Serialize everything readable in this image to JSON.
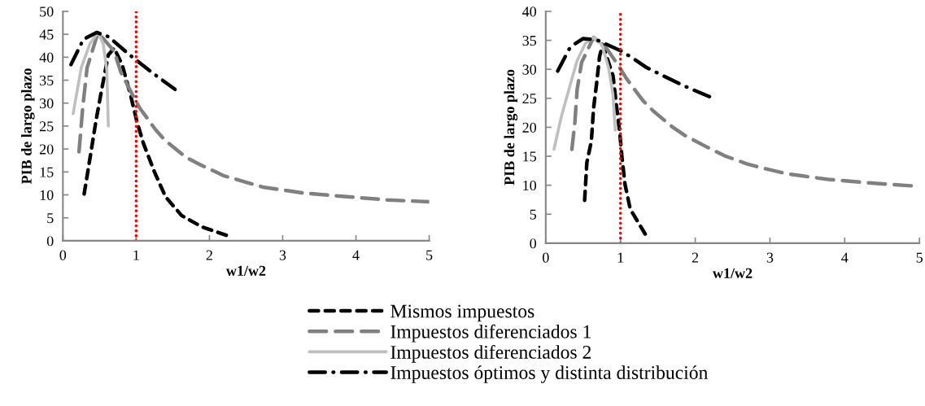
{
  "chart_data": [
    {
      "type": "line",
      "xlabel": "w1/w2",
      "ylabel": "PIB de largo plazo",
      "xlim": [
        0,
        5
      ],
      "xticks": [
        0,
        1,
        2,
        3,
        4,
        5
      ],
      "ylim": [
        0,
        50
      ],
      "yticks": [
        0,
        5,
        10,
        15,
        20,
        25,
        30,
        35,
        40,
        45,
        50
      ],
      "grid": false,
      "legend": "bottom",
      "ref_lines": [
        {
          "axis": "x",
          "value": 1,
          "color": "#ff0000",
          "line_style": "dotted"
        }
      ],
      "series": [
        {
          "name": "Mismos impuestos",
          "color": "#000000",
          "line_style": "dashed",
          "x": [
            0.29,
            0.37,
            0.45,
            0.53,
            0.62,
            0.7,
            0.81,
            0.92,
            1.01,
            1.1,
            1.25,
            1.4,
            1.62,
            1.9,
            2.23
          ],
          "values": [
            10.2,
            18,
            26,
            33,
            40.5,
            42,
            38.3,
            32,
            26,
            21.2,
            15,
            9.6,
            5.5,
            3,
            1.2
          ]
        },
        {
          "name": "Impuestos diferenciados 1",
          "color": "#808080",
          "line_style": "long dashed",
          "x": [
            0.22,
            0.27,
            0.33,
            0.48,
            0.7,
            0.79,
            0.96,
            1.05,
            1.27,
            1.4,
            1.68,
            1.86,
            2.19,
            2.73,
            3.28,
            3.88,
            4.43,
            5.0
          ],
          "values": [
            19.4,
            28.9,
            37.7,
            45.4,
            41.3,
            36.8,
            31.5,
            28.9,
            24.1,
            21.8,
            18.2,
            16.7,
            14.2,
            11.7,
            10.4,
            9.6,
            8.9,
            8.5
          ]
        },
        {
          "name": "Impuestos diferenciados 2",
          "color": "#bfbfbf",
          "line_style": "solid",
          "x": [
            0.14,
            0.25,
            0.37,
            0.48,
            0.55,
            0.6,
            0.62
          ],
          "values": [
            27.7,
            37.7,
            43,
            45.4,
            43,
            37.1,
            25
          ]
        },
        {
          "name": "Impuestos óptimos y distinta distribución",
          "color": "#000000",
          "line_style": "dash dot",
          "x": [
            0.11,
            0.28,
            0.46,
            0.62,
            0.92,
            1.08,
            1.23,
            1.53
          ],
          "values": [
            38.4,
            43.9,
            45.4,
            44.5,
            40.4,
            38.4,
            36.5,
            33
          ]
        }
      ]
    },
    {
      "type": "line",
      "xlabel": "w1/w2",
      "ylabel": "PIB de largo plazo",
      "xlim": [
        0,
        5
      ],
      "xticks": [
        0,
        1,
        2,
        3,
        4,
        5
      ],
      "ylim": [
        0,
        40
      ],
      "yticks": [
        0,
        5,
        10,
        15,
        20,
        25,
        30,
        35,
        40
      ],
      "grid": false,
      "legend": "bottom",
      "ref_lines": [
        {
          "axis": "x",
          "value": 1,
          "color": "#ff0000",
          "line_style": "dotted"
        }
      ],
      "series": [
        {
          "name": "Mismos impuestos",
          "color": "#000000",
          "line_style": "dashed",
          "x": [
            0.52,
            0.55,
            0.61,
            0.64,
            0.68,
            0.72,
            0.76,
            0.9,
            0.95,
            0.99,
            1.02,
            1.06,
            1.13,
            1.33
          ],
          "values": [
            7.4,
            13.9,
            17.6,
            23.3,
            27.5,
            32.2,
            34.3,
            28.9,
            23.3,
            19.1,
            14.8,
            10.2,
            5.9,
            1.6
          ]
        },
        {
          "name": "Impuestos diferenciados 1",
          "color": "#808080",
          "line_style": "long dashed",
          "x": [
            0.35,
            0.39,
            0.42,
            0.48,
            0.64,
            0.82,
            0.97,
            1.08,
            1.3,
            1.44,
            1.7,
            1.86,
            2.17,
            2.39,
            2.69,
            2.89,
            3.22,
            3.44,
            3.78,
            3.98,
            4.33,
            4.89
          ],
          "values": [
            16.2,
            20.9,
            26.5,
            31.2,
            35.5,
            33.5,
            30.7,
            28.4,
            24.6,
            22.8,
            20,
            18.6,
            16.5,
            15.1,
            13.7,
            13,
            12,
            11.6,
            11,
            10.8,
            10.4,
            9.9
          ]
        },
        {
          "name": "Impuestos diferenciados 2",
          "color": "#bfbfbf",
          "line_style": "solid",
          "x": [
            0.11,
            0.21,
            0.32,
            0.42,
            0.53,
            0.64,
            0.75,
            0.84,
            0.9,
            0.93
          ],
          "values": [
            16.2,
            21.9,
            27,
            31.5,
            34.5,
            35.5,
            34.3,
            30.3,
            25.6,
            19.5
          ]
        },
        {
          "name": "Impuestos óptimos y distinta distribución",
          "color": "#000000",
          "line_style": "dash dot",
          "x": [
            0.16,
            0.33,
            0.5,
            0.68,
            1.02,
            1.19,
            1.35,
            1.68,
            1.86,
            2.04,
            2.19
          ],
          "values": [
            29.7,
            33.9,
            35.3,
            35.1,
            33.1,
            31.7,
            30.3,
            28.2,
            27.1,
            26.1,
            25.3
          ]
        }
      ]
    }
  ]
}
